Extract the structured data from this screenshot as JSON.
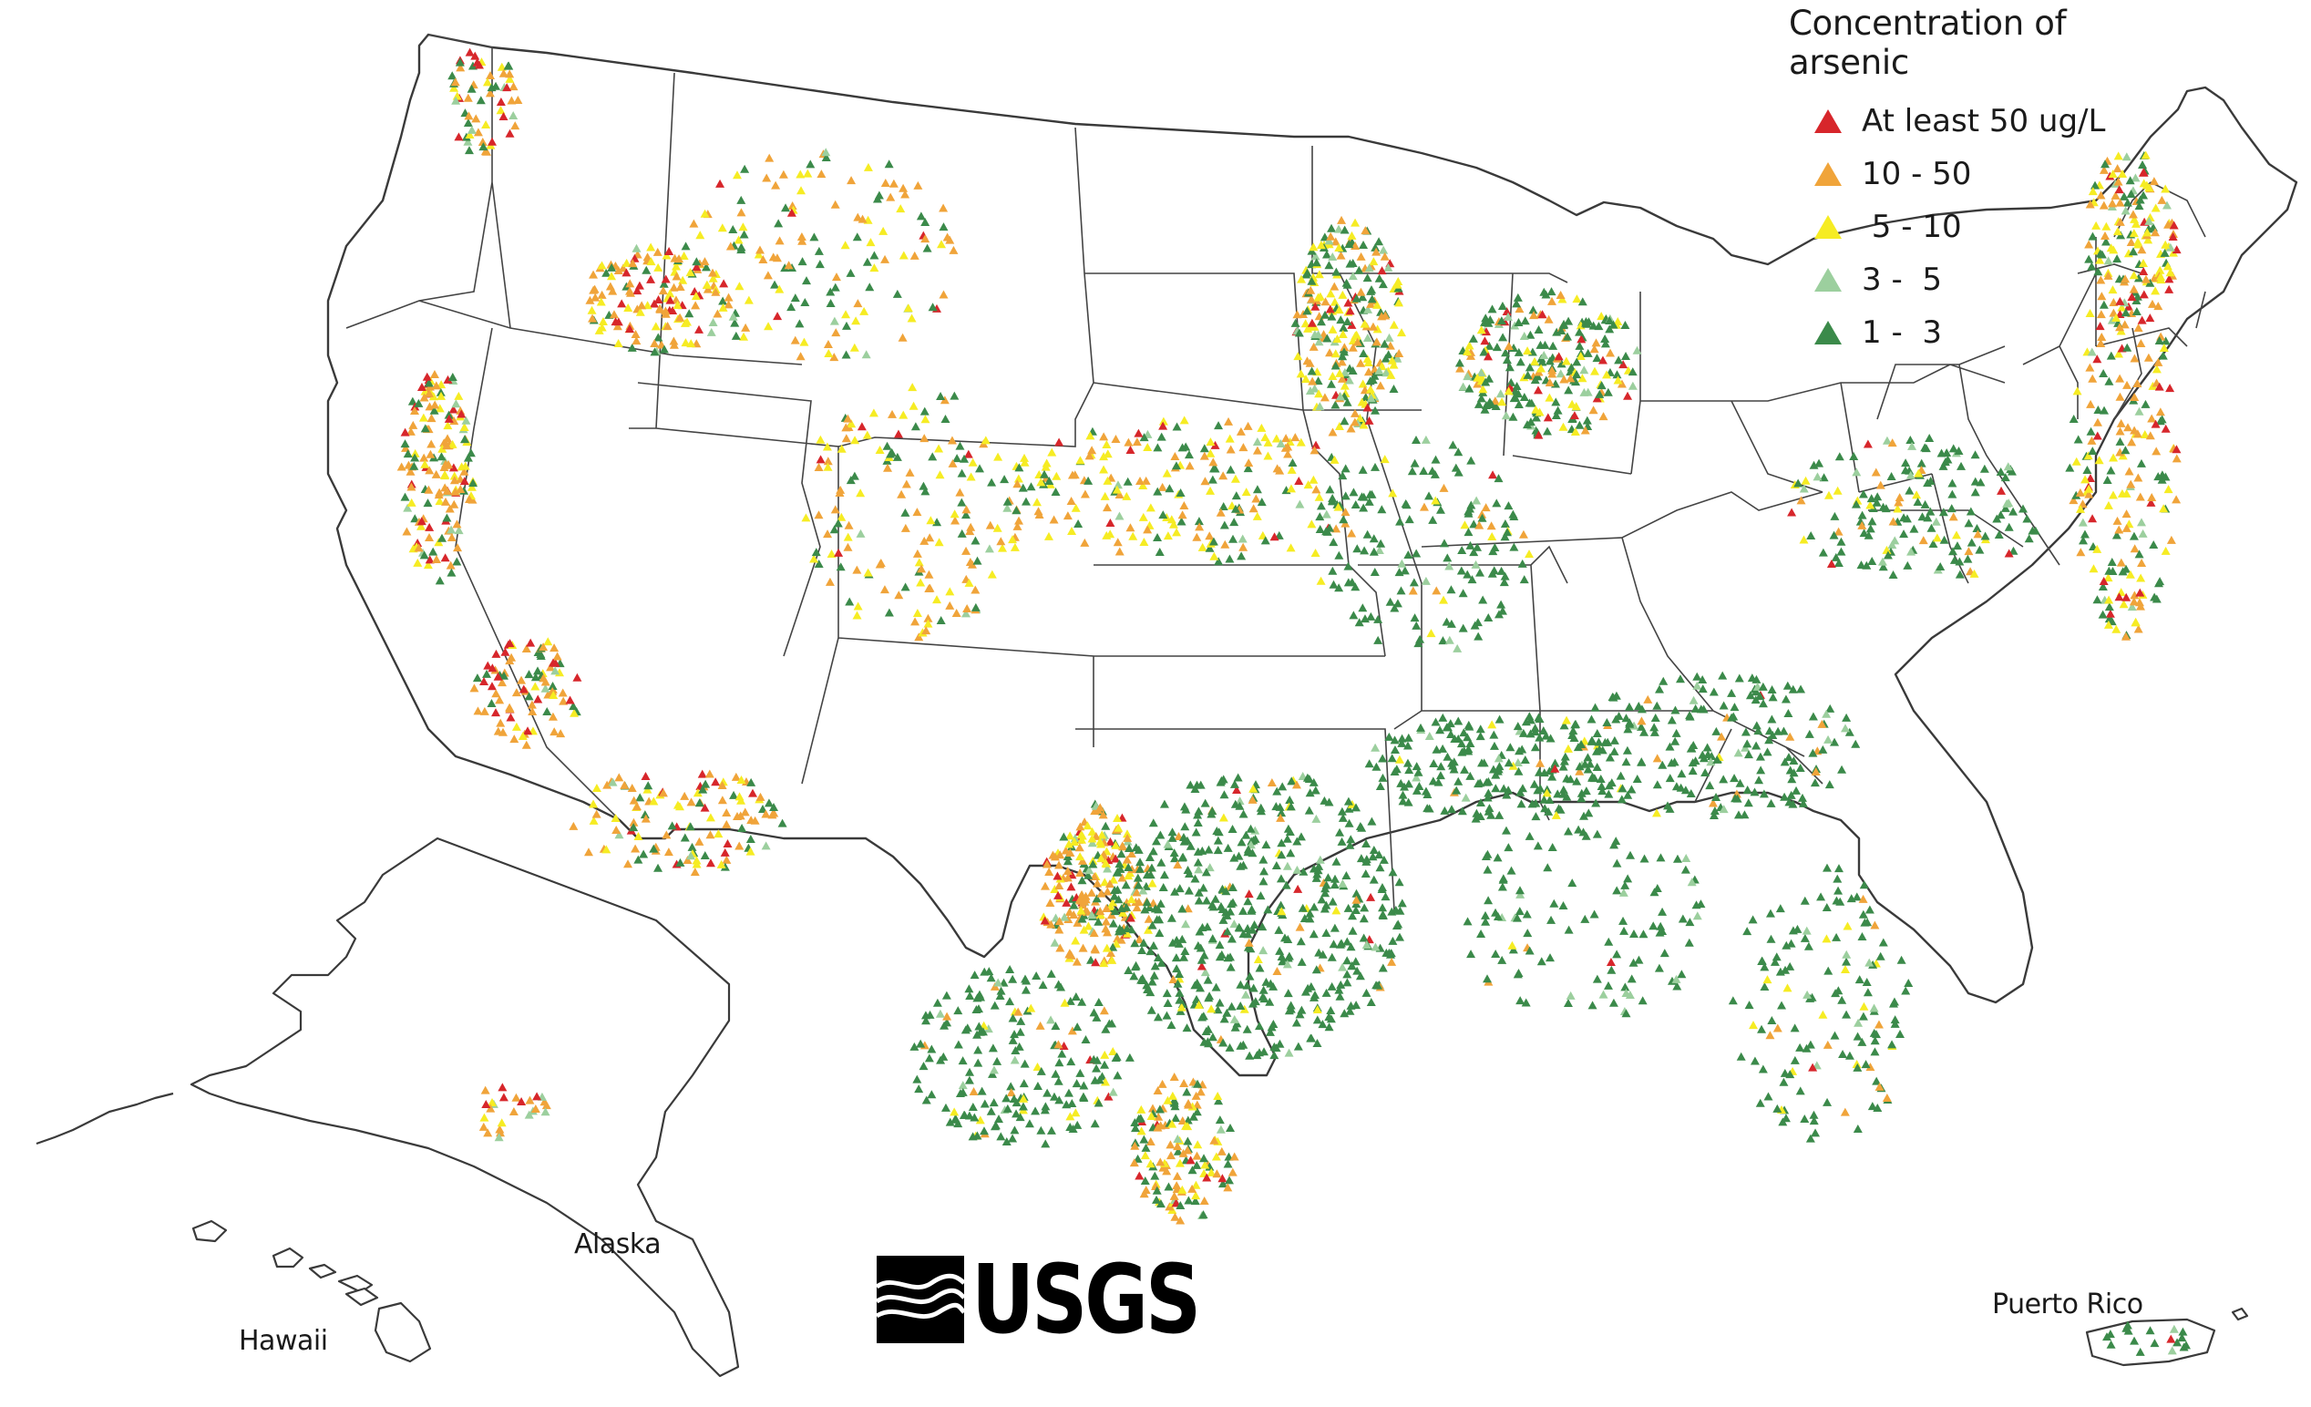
{
  "legend": {
    "title": "Concentration of arsenic",
    "items": [
      {
        "label": "At least 50 ug/L",
        "color": "#d7262b"
      },
      {
        "label": "10 - 50",
        "color": "#f0a43a"
      },
      {
        "label": " 5 - 10",
        "color": "#f6ec23"
      },
      {
        "label": "3 -  5",
        "color": "#9ccf9e"
      },
      {
        "label": "1 -  3",
        "color": "#3b8a4a"
      }
    ]
  },
  "labels": {
    "alaska": "Alaska",
    "hawaii": "Hawaii",
    "puerto_rico": "Puerto Rico"
  },
  "logo": {
    "text": "USGS"
  }
}
